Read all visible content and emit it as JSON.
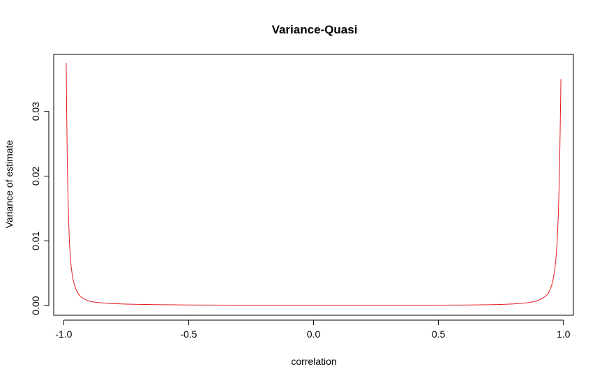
{
  "chart_data": {
    "type": "line",
    "title": "Variance-Quasi",
    "xlabel": "correlation",
    "ylabel": "Variance of estimate",
    "xlim": [
      -1.04,
      1.04
    ],
    "ylim": [
      -0.0015,
      0.0388
    ],
    "x_ticks": [
      -1.0,
      -0.5,
      0.0,
      0.5,
      1.0
    ],
    "x_tick_labels": [
      "-1.0",
      "-0.5",
      "0.0",
      "0.5",
      "1.0"
    ],
    "y_ticks": [
      0.0,
      0.01,
      0.02,
      0.03
    ],
    "y_tick_labels": [
      "0.00",
      "0.01",
      "0.02",
      "0.03"
    ],
    "grid": false,
    "legend": "none",
    "series": [
      {
        "color": "#e41a1c",
        "x": [
          -0.99,
          -0.988,
          -0.986,
          -0.984,
          -0.982,
          -0.98,
          -0.977,
          -0.974,
          -0.97,
          -0.966,
          -0.962,
          -0.957,
          -0.952,
          -0.946,
          -0.94,
          -0.93,
          -0.92,
          -0.9,
          -0.88,
          -0.86,
          -0.84,
          -0.82,
          -0.8,
          -0.75,
          -0.7,
          -0.65,
          -0.6,
          -0.55,
          -0.5,
          -0.45,
          -0.4,
          -0.3,
          -0.2,
          -0.1,
          0.0,
          0.1,
          0.2,
          0.3,
          0.4,
          0.45,
          0.5,
          0.55,
          0.6,
          0.65,
          0.7,
          0.75,
          0.8,
          0.82,
          0.84,
          0.86,
          0.88,
          0.9,
          0.92,
          0.93,
          0.94,
          0.946,
          0.952,
          0.957,
          0.962,
          0.966,
          0.97,
          0.974,
          0.977,
          0.98,
          0.982,
          0.984,
          0.986,
          0.988,
          0.99
        ],
        "y": [
          0.0375,
          0.0295,
          0.0235,
          0.019,
          0.0155,
          0.0128,
          0.0098,
          0.0078,
          0.006,
          0.0048,
          0.0039,
          0.0032,
          0.0026,
          0.0021,
          0.0017,
          0.0013,
          0.00105,
          0.0007,
          0.00055,
          0.00045,
          0.00038,
          0.00033,
          0.00029,
          0.00023,
          0.00019,
          0.00016,
          0.00013,
          0.00011,
          9e-05,
          8e-05,
          7e-05,
          5e-05,
          4e-05,
          3e-05,
          3e-05,
          3e-05,
          3e-05,
          4e-05,
          5e-05,
          5e-05,
          6e-05,
          7e-05,
          8e-05,
          0.0001,
          0.00013,
          0.00017,
          0.00025,
          0.0003,
          0.00037,
          0.00046,
          0.0006,
          0.00082,
          0.0012,
          0.0015,
          0.0019,
          0.0024,
          0.003,
          0.0037,
          0.0047,
          0.0058,
          0.0072,
          0.0092,
          0.0115,
          0.0145,
          0.0172,
          0.0205,
          0.0245,
          0.0295,
          0.035
        ]
      }
    ]
  }
}
